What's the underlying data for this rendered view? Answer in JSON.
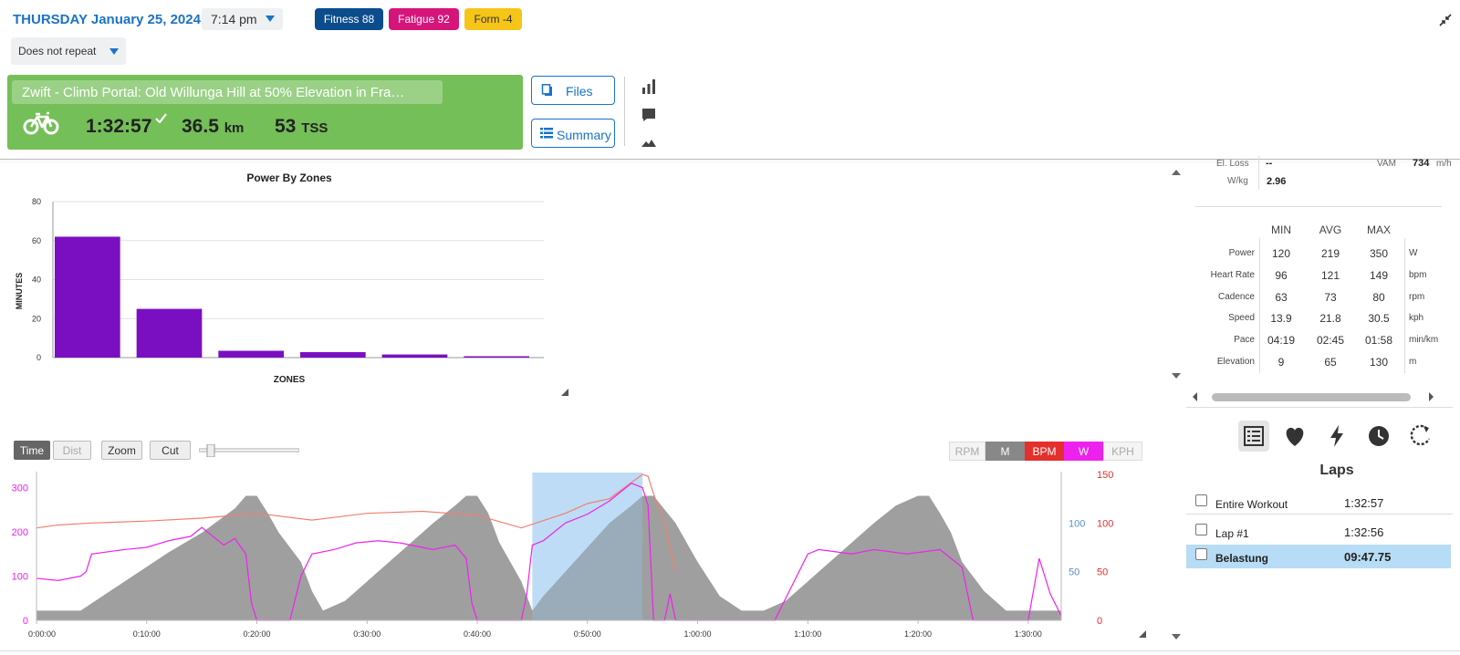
{
  "header": {
    "day": "THURSDAY",
    "date": "January 25, 2024",
    "time": "7:14 pm",
    "repeat": "Does not repeat",
    "badges": {
      "fitness": "Fitness 88",
      "fatigue": "Fatigue 92",
      "form": "Form -4"
    },
    "colors": {
      "fitness": "#0b4c8c",
      "fatigue": "#d6157b",
      "form": "#f5c518",
      "accent": "#1a73c8"
    }
  },
  "workout": {
    "title": "Zwift - Climb Portal: Old Willunga Hill at 50% Elevation in Fra…",
    "duration": "1:32:57",
    "distance": "36.5",
    "distance_unit": "km",
    "tss": "53",
    "tss_unit": "TSS",
    "card_color": "#74bf58",
    "files_label": "Files",
    "summary_label": "Summary",
    "icons": [
      "bar-chart-icon",
      "comment-icon",
      "mountain-icon"
    ]
  },
  "zones_chart": {
    "chart_data": {
      "type": "bar",
      "title": "Power By Zones",
      "xlabel": "ZONES",
      "ylabel": "MINUTES",
      "categories": [
        "",
        "",
        "",
        "",
        "",
        ""
      ],
      "values": [
        62,
        25,
        3.5,
        2.8,
        1.6,
        0.7
      ],
      "ylim": [
        0,
        80
      ],
      "yticks": [
        "0",
        "20",
        "40",
        "60",
        "80"
      ],
      "bar_color": "#7a0fc2",
      "grid": true
    }
  },
  "time_chart": {
    "buttons": {
      "time": "Time",
      "dist": "Dist",
      "zoom": "Zoom",
      "cut": "Cut"
    },
    "series_toggles": {
      "rpm": "RPM",
      "m": "M",
      "bpm": "BPM",
      "w": "W",
      "kph": "KPH"
    },
    "chart_data": {
      "type": "line",
      "x_ticks": [
        "0:00:00",
        "0:10:00",
        "0:20:00",
        "0:30:00",
        "0:40:00",
        "0:50:00",
        "1:00:00",
        "1:10:00",
        "1:20:00",
        "1:30:00"
      ],
      "x_minutes": [
        0,
        10,
        20,
        30,
        40,
        50,
        60,
        70,
        80,
        90
      ],
      "xlim": [
        0,
        93
      ],
      "axes": {
        "power": {
          "ticks": [
            "0",
            "100",
            "200",
            "300"
          ],
          "ylim": [
            0,
            330
          ],
          "color": "#ee22ee"
        },
        "elevation": {
          "ticks": [
            "50",
            "100"
          ],
          "ylim": [
            0,
            150
          ],
          "color": "#5b8fc2"
        },
        "heart_rate": {
          "ticks": [
            "0",
            "50",
            "100",
            "150"
          ],
          "ylim": [
            0,
            150
          ],
          "color": "#e3302c"
        }
      },
      "selection_minutes": [
        45,
        55
      ],
      "series": [
        {
          "name": "W",
          "color": "#ee22ee",
          "x": [
            0,
            2,
            4,
            4.5,
            5,
            8,
            10,
            12,
            14,
            15,
            17,
            18,
            19,
            19.5,
            20,
            22,
            23,
            24,
            25,
            27,
            29,
            31,
            33,
            35,
            36,
            38,
            39,
            39.5,
            40,
            44,
            44.5,
            45,
            46,
            48,
            50,
            52,
            53,
            54,
            55,
            55.5,
            56,
            57,
            57.5,
            58,
            62,
            63,
            66,
            67,
            70,
            71,
            74,
            76,
            79,
            82,
            83,
            84,
            84.5,
            85,
            88,
            89,
            90,
            91,
            92,
            93
          ],
          "y": [
            95,
            90,
            100,
            110,
            150,
            160,
            165,
            180,
            190,
            210,
            170,
            185,
            150,
            40,
            0,
            0,
            0,
            100,
            150,
            160,
            175,
            180,
            175,
            165,
            160,
            170,
            140,
            40,
            0,
            0,
            60,
            170,
            180,
            220,
            240,
            270,
            290,
            310,
            300,
            260,
            0,
            0,
            60,
            0,
            0,
            0,
            0,
            0,
            150,
            160,
            150,
            160,
            150,
            160,
            140,
            120,
            60,
            0,
            0,
            0,
            0,
            140,
            60,
            10
          ]
        },
        {
          "name": "BPM",
          "color": "#f08070",
          "x": [
            0,
            2,
            5,
            10,
            15,
            20,
            25,
            30,
            35,
            40,
            44,
            48,
            50,
            52,
            55,
            55.5,
            56,
            57,
            58
          ],
          "y": [
            95,
            98,
            100,
            102,
            105,
            110,
            103,
            110,
            112,
            108,
            95,
            110,
            120,
            125,
            150,
            148,
            130,
            100,
            50
          ]
        },
        {
          "name": "M",
          "color": "#8e8e8e",
          "x": [
            0,
            4,
            8,
            10,
            12,
            15,
            18,
            19,
            20,
            21,
            22,
            24,
            25,
            26,
            28,
            30,
            33,
            36,
            38,
            39,
            40,
            41,
            42,
            44,
            45,
            46,
            48,
            50,
            52,
            54,
            55,
            56,
            58,
            60,
            62,
            64,
            66,
            68,
            70,
            72,
            74,
            76,
            78,
            80,
            81,
            82,
            83,
            84,
            86,
            88,
            90,
            92,
            93
          ],
          "y": [
            10,
            10,
            40,
            55,
            70,
            90,
            115,
            128,
            128,
            110,
            90,
            60,
            30,
            10,
            20,
            40,
            70,
            100,
            118,
            128,
            128,
            110,
            80,
            40,
            10,
            25,
            50,
            75,
            100,
            118,
            128,
            128,
            100,
            60,
            25,
            10,
            10,
            20,
            40,
            60,
            80,
            100,
            118,
            128,
            128,
            110,
            90,
            60,
            30,
            10,
            10,
            10,
            10
          ]
        }
      ]
    }
  },
  "stats": {
    "el_loss_label": "El. Loss",
    "el_loss_value": "--",
    "vam_label": "VAM",
    "vam_value": "734",
    "vam_unit": "m/h",
    "wkg_label": "W/kg",
    "wkg_value": "2.96",
    "columns": [
      "MIN",
      "AVG",
      "MAX"
    ],
    "rows": [
      {
        "label": "Power",
        "min": "120",
        "avg": "219",
        "max": "350",
        "unit": "W"
      },
      {
        "label": "Heart Rate",
        "min": "96",
        "avg": "121",
        "max": "149",
        "unit": "bpm"
      },
      {
        "label": "Cadence",
        "min": "63",
        "avg": "73",
        "max": "80",
        "unit": "rpm"
      },
      {
        "label": "Speed",
        "min": "13.9",
        "avg": "21.8",
        "max": "30.5",
        "unit": "kph"
      },
      {
        "label": "Pace",
        "min": "04:19",
        "avg": "02:45",
        "max": "01:58",
        "unit": "min/km"
      },
      {
        "label": "Elevation",
        "min": "9",
        "avg": "65",
        "max": "130",
        "unit": "m"
      }
    ]
  },
  "analysis_tabs": [
    "list-icon",
    "heart-icon",
    "lightning-icon",
    "clock-icon",
    "refresh-icon"
  ],
  "laps": {
    "title": "Laps",
    "items": [
      {
        "name": "Entire Workout",
        "time": "1:32:57"
      },
      {
        "name": "Lap #1",
        "time": "1:32:56"
      },
      {
        "name": "Belastung",
        "time": "09:47.75"
      }
    ]
  }
}
